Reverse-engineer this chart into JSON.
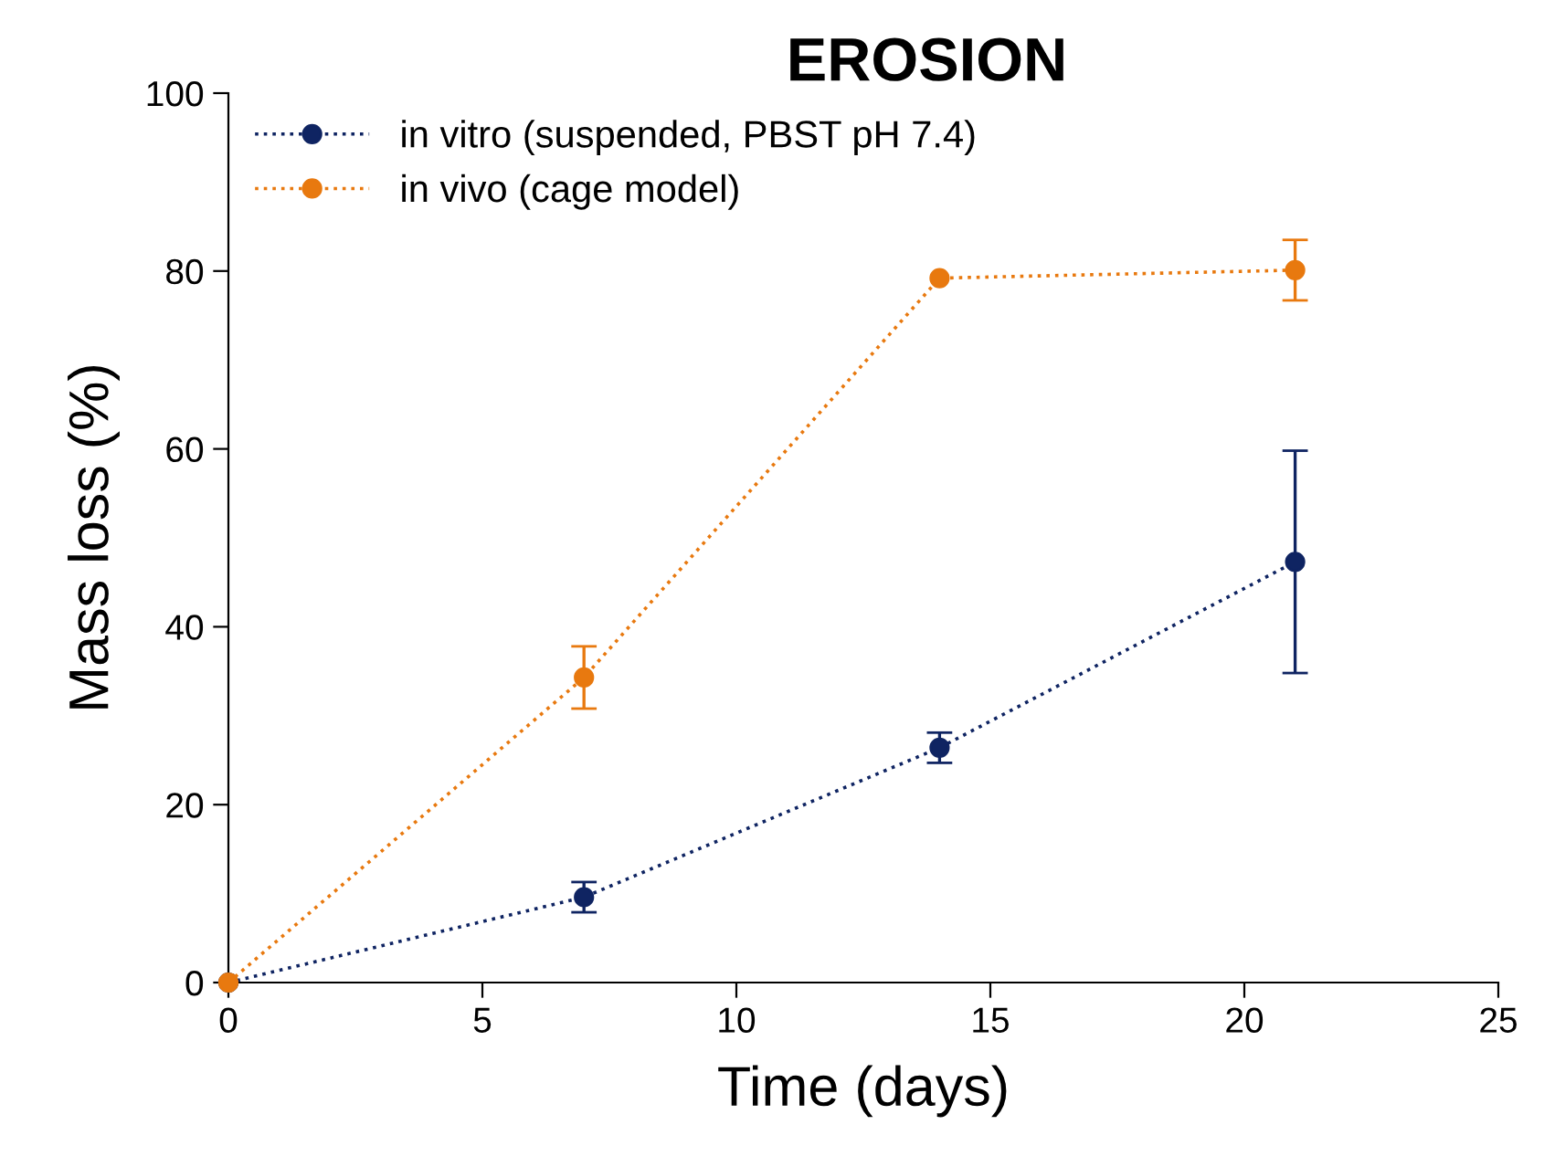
{
  "chart_data": {
    "type": "line",
    "title": "EROSION",
    "xlabel": "Time (days)",
    "ylabel": "Mass loss (%)",
    "x": [
      0,
      7,
      14,
      21
    ],
    "series": [
      {
        "name": "in vitro (suspended, PBST pH 7.4)",
        "color": "#0f2462",
        "values": [
          0,
          9.6,
          26.4,
          47.3
        ],
        "errors": [
          null,
          1.7,
          1.7,
          12.5
        ]
      },
      {
        "name": "in vivo (cage model)",
        "color": "#e8790f",
        "values": [
          0,
          34.3,
          79.2,
          80.1
        ],
        "errors": [
          null,
          3.5,
          null,
          3.4
        ]
      }
    ],
    "xlim": [
      0,
      25
    ],
    "xticks": [
      0,
      5,
      10,
      15,
      20,
      25
    ],
    "ylim": [
      0,
      100
    ],
    "yticks": [
      0,
      20,
      40,
      60,
      80,
      100
    ],
    "grid": false,
    "legend": "top left",
    "marker": "circle",
    "line_style": "dotted"
  }
}
